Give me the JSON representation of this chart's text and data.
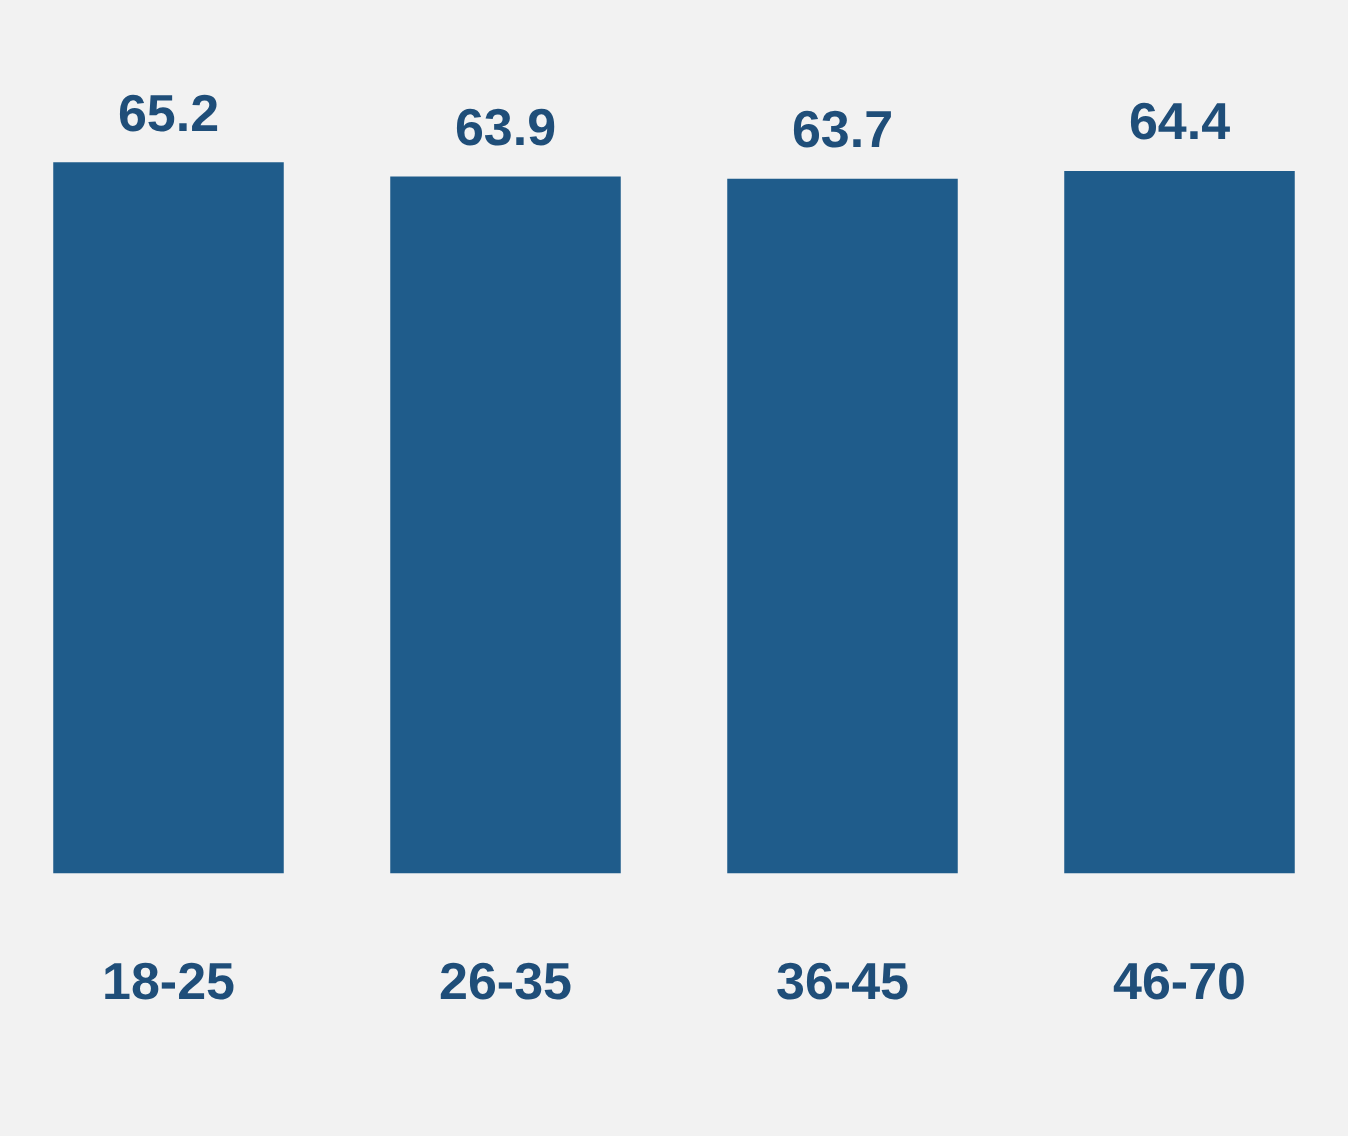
{
  "chart_data": {
    "type": "bar",
    "categories": [
      "18-25",
      "26-35",
      "36-45",
      "46-70"
    ],
    "values": [
      65.2,
      63.9,
      63.7,
      64.4
    ],
    "color": "#1f5c8b",
    "tick_labels": "x",
    "grid": false,
    "legend": false,
    "data_labels": true
  }
}
